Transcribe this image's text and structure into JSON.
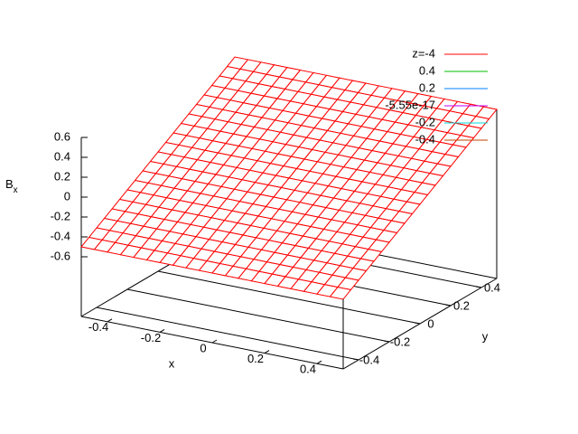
{
  "chart_data": {
    "type": "surface",
    "xlabel": "x",
    "ylabel": "y",
    "zlabel": "B",
    "zlabel_subscript": "x",
    "x": [
      -0.5,
      -0.45,
      -0.4,
      -0.35,
      -0.3,
      -0.25,
      -0.2,
      -0.15,
      -0.1,
      -0.05,
      0,
      0.05,
      0.1,
      0.15,
      0.2,
      0.25,
      0.3,
      0.35,
      0.4,
      0.45,
      0.5
    ],
    "y": [
      -0.5,
      -0.45,
      -0.4,
      -0.35,
      -0.3,
      -0.25,
      -0.2,
      -0.15,
      -0.1,
      -0.05,
      0,
      0.05,
      0.1,
      0.15,
      0.2,
      0.25,
      0.3,
      0.35,
      0.4,
      0.45,
      0.5
    ],
    "z": [
      [
        -0.5,
        -0.5,
        -0.5,
        -0.5,
        -0.5,
        -0.5,
        -0.5,
        -0.5,
        -0.5,
        -0.5,
        -0.5,
        -0.5,
        -0.5,
        -0.5,
        -0.5,
        -0.5,
        -0.5,
        -0.5,
        -0.5,
        -0.5,
        -0.5
      ],
      [
        -0.45,
        -0.45,
        -0.45,
        -0.45,
        -0.45,
        -0.45,
        -0.45,
        -0.45,
        -0.45,
        -0.45,
        -0.45,
        -0.45,
        -0.45,
        -0.45,
        -0.45,
        -0.45,
        -0.45,
        -0.45,
        -0.45,
        -0.45,
        -0.45
      ],
      [
        -0.4,
        -0.4,
        -0.4,
        -0.4,
        -0.4,
        -0.4,
        -0.4,
        -0.4,
        -0.4,
        -0.4,
        -0.4,
        -0.4,
        -0.4,
        -0.4,
        -0.4,
        -0.4,
        -0.4,
        -0.4,
        -0.4,
        -0.4,
        -0.4
      ],
      [
        -0.35,
        -0.35,
        -0.35,
        -0.35,
        -0.35,
        -0.35,
        -0.35,
        -0.35,
        -0.35,
        -0.35,
        -0.35,
        -0.35,
        -0.35,
        -0.35,
        -0.35,
        -0.35,
        -0.35,
        -0.35,
        -0.35,
        -0.35,
        -0.35
      ],
      [
        -0.3,
        -0.3,
        -0.3,
        -0.3,
        -0.3,
        -0.3,
        -0.3,
        -0.3,
        -0.3,
        -0.3,
        -0.3,
        -0.3,
        -0.3,
        -0.3,
        -0.3,
        -0.3,
        -0.3,
        -0.3,
        -0.3,
        -0.3,
        -0.3
      ],
      [
        -0.25,
        -0.25,
        -0.25,
        -0.25,
        -0.25,
        -0.25,
        -0.25,
        -0.25,
        -0.25,
        -0.25,
        -0.25,
        -0.25,
        -0.25,
        -0.25,
        -0.25,
        -0.25,
        -0.25,
        -0.25,
        -0.25,
        -0.25,
        -0.25
      ],
      [
        -0.2,
        -0.2,
        -0.2,
        -0.2,
        -0.2,
        -0.2,
        -0.2,
        -0.2,
        -0.2,
        -0.2,
        -0.2,
        -0.2,
        -0.2,
        -0.2,
        -0.2,
        -0.2,
        -0.2,
        -0.2,
        -0.2,
        -0.2,
        -0.2
      ],
      [
        -0.15,
        -0.15,
        -0.15,
        -0.15,
        -0.15,
        -0.15,
        -0.15,
        -0.15,
        -0.15,
        -0.15,
        -0.15,
        -0.15,
        -0.15,
        -0.15,
        -0.15,
        -0.15,
        -0.15,
        -0.15,
        -0.15,
        -0.15,
        -0.15
      ],
      [
        -0.1,
        -0.1,
        -0.1,
        -0.1,
        -0.1,
        -0.1,
        -0.1,
        -0.1,
        -0.1,
        -0.1,
        -0.1,
        -0.1,
        -0.1,
        -0.1,
        -0.1,
        -0.1,
        -0.1,
        -0.1,
        -0.1,
        -0.1,
        -0.1
      ],
      [
        -0.05,
        -0.05,
        -0.05,
        -0.05,
        -0.05,
        -0.05,
        -0.05,
        -0.05,
        -0.05,
        -0.05,
        -0.05,
        -0.05,
        -0.05,
        -0.05,
        -0.05,
        -0.05,
        -0.05,
        -0.05,
        -0.05,
        -0.05,
        -0.05
      ],
      [
        0,
        0,
        0,
        0,
        0,
        0,
        0,
        0,
        0,
        0,
        0,
        0,
        0,
        0,
        0,
        0,
        0,
        0,
        0,
        0,
        0
      ],
      [
        0.05,
        0.05,
        0.05,
        0.05,
        0.05,
        0.05,
        0.05,
        0.05,
        0.05,
        0.05,
        0.05,
        0.05,
        0.05,
        0.05,
        0.05,
        0.05,
        0.05,
        0.05,
        0.05,
        0.05,
        0.05
      ],
      [
        0.1,
        0.1,
        0.1,
        0.1,
        0.1,
        0.1,
        0.1,
        0.1,
        0.1,
        0.1,
        0.1,
        0.1,
        0.1,
        0.1,
        0.1,
        0.1,
        0.1,
        0.1,
        0.1,
        0.1,
        0.1
      ],
      [
        0.15,
        0.15,
        0.15,
        0.15,
        0.15,
        0.15,
        0.15,
        0.15,
        0.15,
        0.15,
        0.15,
        0.15,
        0.15,
        0.15,
        0.15,
        0.15,
        0.15,
        0.15,
        0.15,
        0.15,
        0.15
      ],
      [
        0.2,
        0.2,
        0.2,
        0.2,
        0.2,
        0.2,
        0.2,
        0.2,
        0.2,
        0.2,
        0.2,
        0.2,
        0.2,
        0.2,
        0.2,
        0.2,
        0.2,
        0.2,
        0.2,
        0.2,
        0.2
      ],
      [
        0.25,
        0.25,
        0.25,
        0.25,
        0.25,
        0.25,
        0.25,
        0.25,
        0.25,
        0.25,
        0.25,
        0.25,
        0.25,
        0.25,
        0.25,
        0.25,
        0.25,
        0.25,
        0.25,
        0.25,
        0.25
      ],
      [
        0.3,
        0.3,
        0.3,
        0.3,
        0.3,
        0.3,
        0.3,
        0.3,
        0.3,
        0.3,
        0.3,
        0.3,
        0.3,
        0.3,
        0.3,
        0.3,
        0.3,
        0.3,
        0.3,
        0.3,
        0.3
      ],
      [
        0.35,
        0.35,
        0.35,
        0.35,
        0.35,
        0.35,
        0.35,
        0.35,
        0.35,
        0.35,
        0.35,
        0.35,
        0.35,
        0.35,
        0.35,
        0.35,
        0.35,
        0.35,
        0.35,
        0.35,
        0.35
      ],
      [
        0.4,
        0.4,
        0.4,
        0.4,
        0.4,
        0.4,
        0.4,
        0.4,
        0.4,
        0.4,
        0.4,
        0.4,
        0.4,
        0.4,
        0.4,
        0.4,
        0.4,
        0.4,
        0.4,
        0.4,
        0.4
      ],
      [
        0.45,
        0.45,
        0.45,
        0.45,
        0.45,
        0.45,
        0.45,
        0.45,
        0.45,
        0.45,
        0.45,
        0.45,
        0.45,
        0.45,
        0.45,
        0.45,
        0.45,
        0.45,
        0.45,
        0.45,
        0.45
      ],
      [
        0.5,
        0.5,
        0.5,
        0.5,
        0.5,
        0.5,
        0.5,
        0.5,
        0.5,
        0.5,
        0.5,
        0.5,
        0.5,
        0.5,
        0.5,
        0.5,
        0.5,
        0.5,
        0.5,
        0.5,
        0.5
      ]
    ],
    "surface": {
      "name": "z=-4",
      "color": "#ff0000"
    },
    "contours": [
      {
        "name": "0.4",
        "color": "#00c000",
        "level": 0.4
      },
      {
        "name": "0.2",
        "color": "#0080ff",
        "level": 0.2
      },
      {
        "name": "-5.55e-17",
        "color": "#c000ff",
        "level": -5.55e-17
      },
      {
        "name": "-0.2",
        "color": "#00d8d8",
        "level": -0.2
      },
      {
        "name": "-0.4",
        "color": "#c04000",
        "level": -0.4
      }
    ],
    "xlim": [
      -0.5,
      0.5
    ],
    "ylim": [
      -0.5,
      0.5
    ],
    "zlim": [
      -0.6,
      0.6
    ],
    "xticks": [
      -0.4,
      -0.2,
      0,
      0.2,
      0.4
    ],
    "yticks": [
      -0.4,
      -0.2,
      0,
      0.2,
      0.4
    ],
    "zticks": [
      -0.6,
      -0.4,
      -0.2,
      0,
      0.2,
      0.4,
      0.6
    ]
  }
}
